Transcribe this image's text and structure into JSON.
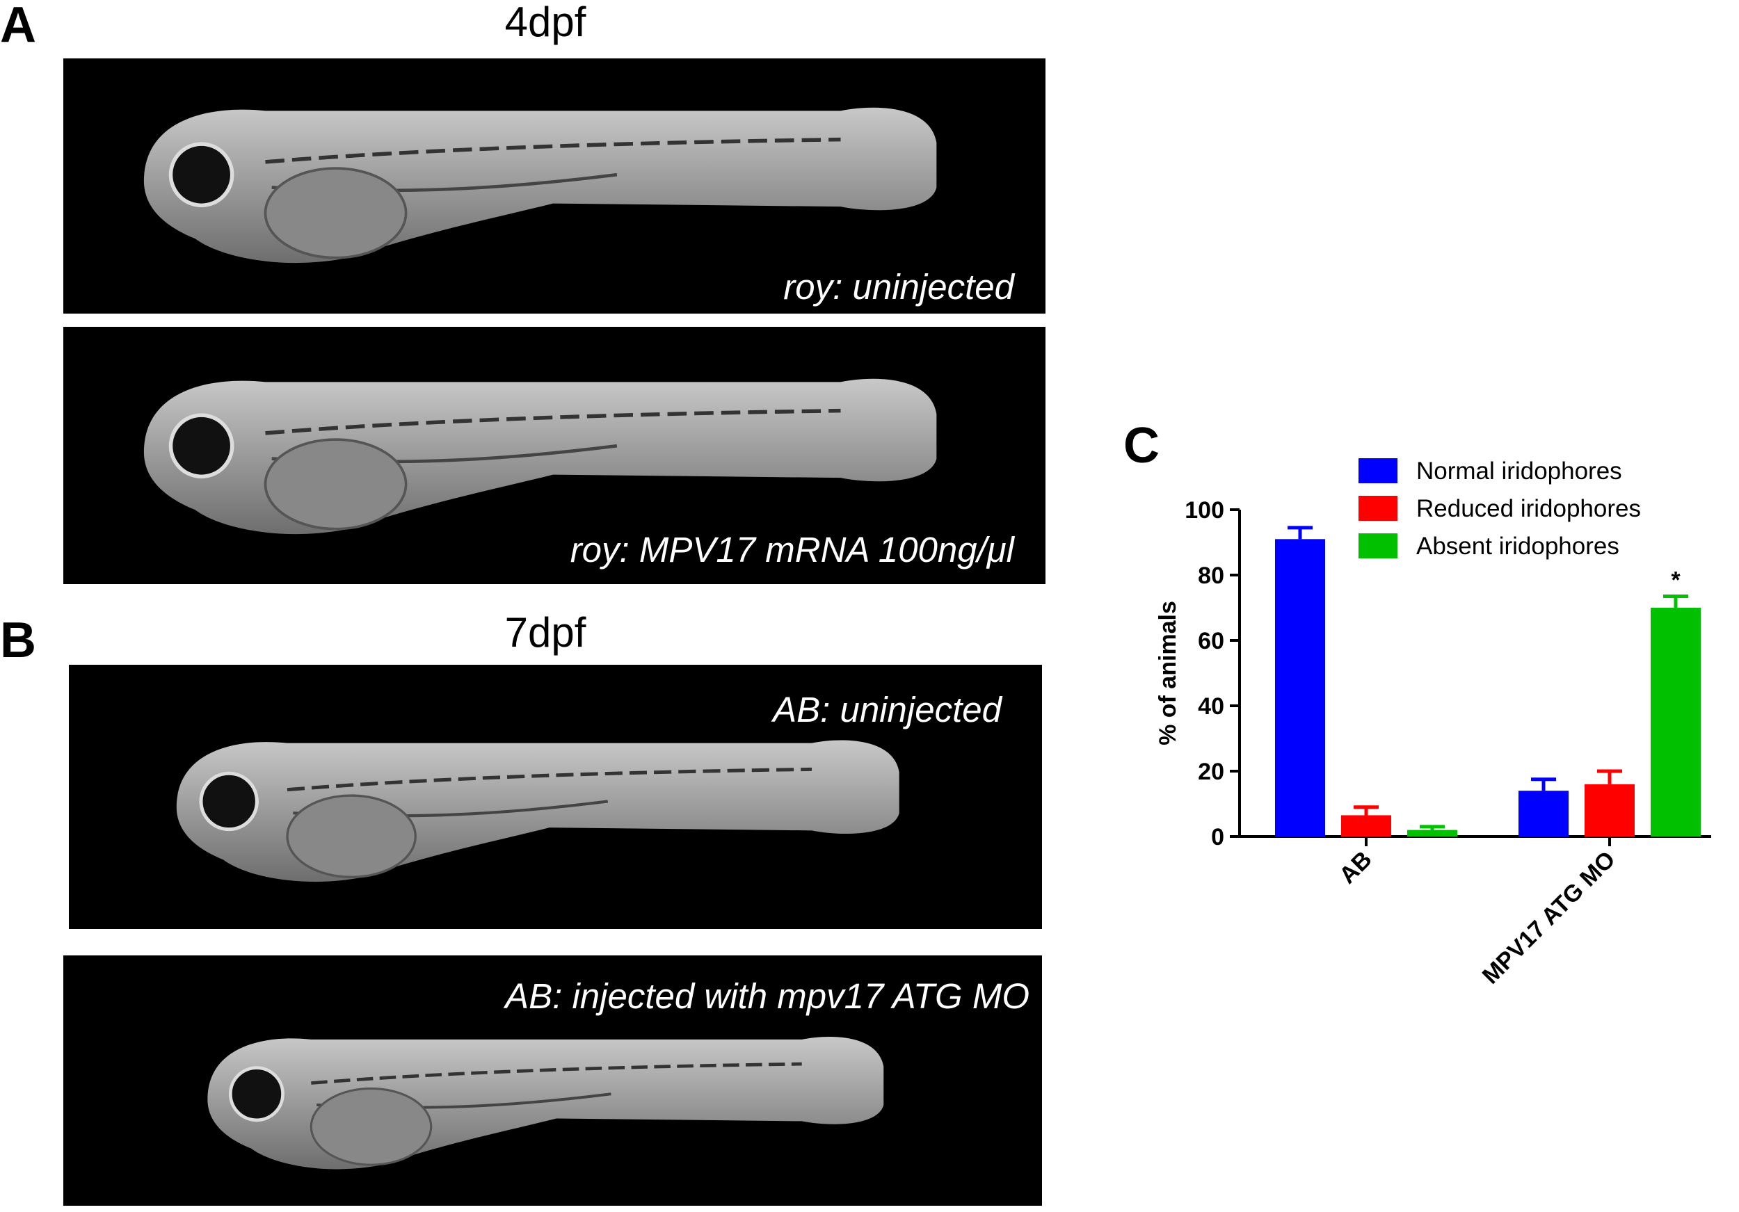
{
  "panels": {
    "a": {
      "label": "A",
      "title": "4dpf",
      "captions": [
        "roy: uninjected",
        "roy: MPV17 mRNA 100ng/μl"
      ]
    },
    "b": {
      "label": "B",
      "title": "7dpf",
      "captions": [
        "AB: uninjected",
        "AB: injected with mpv17 ATG MO"
      ]
    }
  },
  "chart_data": {
    "type": "bar",
    "panel_label": "C",
    "y_label": "% of animals",
    "categories": [
      "AB",
      "MPV17 ATG MO"
    ],
    "series": [
      {
        "name": "Normal iridophores",
        "color": "#0000ff",
        "values": [
          91,
          14
        ],
        "errors": [
          3.5,
          3.5
        ]
      },
      {
        "name": "Reduced iridophores",
        "color": "#ff0000",
        "values": [
          6.5,
          16
        ],
        "errors": [
          2.5,
          4
        ]
      },
      {
        "name": "Absent iridophores",
        "color": "#00c000",
        "values": [
          2,
          70
        ],
        "errors": [
          1,
          3.5
        ]
      }
    ],
    "annotations": [
      "*"
    ],
    "ylim": [
      0,
      100
    ],
    "yticks": [
      0,
      20,
      40,
      60,
      80,
      100
    ],
    "legend": "upper-right"
  }
}
